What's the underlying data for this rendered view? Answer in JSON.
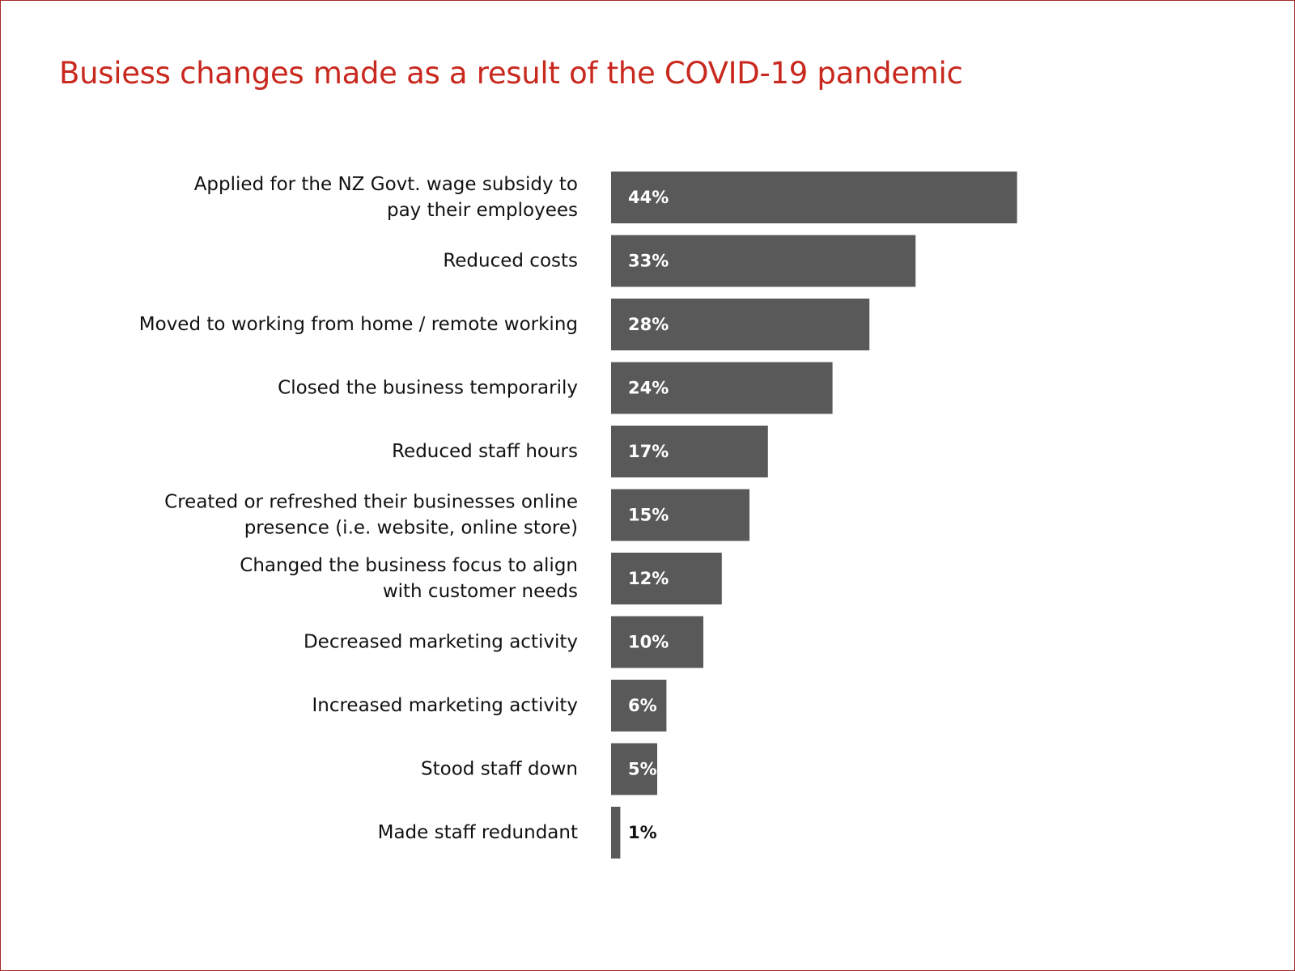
{
  "colors": {
    "title": "#c8281e",
    "bar": "#595959",
    "value_inside": "#ffffff",
    "value_outside": "#111111",
    "frame_border": "#a52a2a"
  },
  "chart_data": {
    "type": "bar",
    "orientation": "horizontal",
    "title": "Busiess changes made as a result of the COVID-19 pandemic",
    "xlabel": "",
    "ylabel": "",
    "xlim": [
      0,
      100
    ],
    "grid": false,
    "legend": "none",
    "categories": [
      [
        "Applied for the NZ Govt. wage subsidy to",
        "pay their employees"
      ],
      [
        "Reduced costs"
      ],
      [
        "Moved to working from home / remote working"
      ],
      [
        "Closed the business temporarily"
      ],
      [
        "Reduced staff hours"
      ],
      [
        "Created or refreshed their businesses online",
        "presence (i.e. website, online store)"
      ],
      [
        "Changed the business focus to align",
        "with customer needs"
      ],
      [
        "Decreased marketing activity"
      ],
      [
        "Increased marketing activity"
      ],
      [
        "Stood staff down"
      ],
      [
        "Made staff redundant"
      ]
    ],
    "values": [
      44,
      33,
      28,
      24,
      17,
      15,
      12,
      10,
      6,
      5,
      1
    ],
    "value_labels": [
      "44%",
      "33%",
      "28%",
      "24%",
      "17%",
      "15%",
      "12%",
      "10%",
      "6%",
      "5%",
      "1%"
    ]
  }
}
